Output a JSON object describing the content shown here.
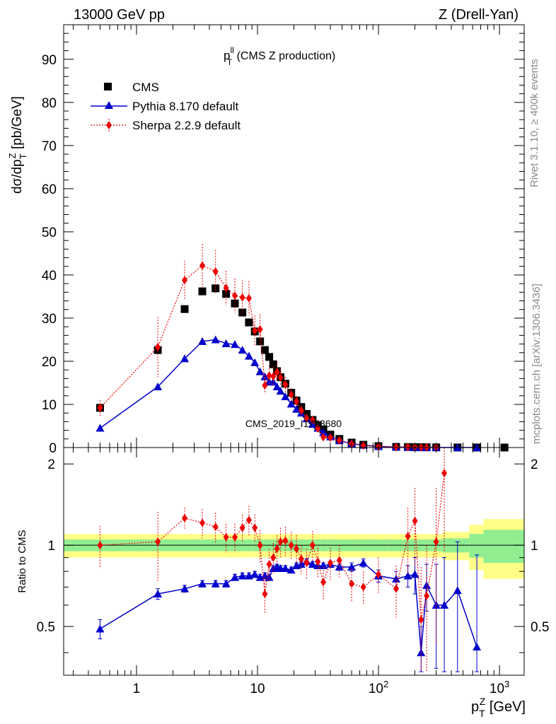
{
  "header": {
    "left": "13000 GeV pp",
    "right": "Z (Drell-Yan)"
  },
  "side_text": {
    "rivet": "Rivet 3.1.10, ≥ 400k events",
    "site": "mcplots.cern.ch [arXiv:1306.3436]"
  },
  "chart_data": [
    {
      "type": "scatter",
      "title": "p_T^ll (CMS Z production)",
      "title_main": "p",
      "title_sup": "ll",
      "title_sub": "T",
      "title_rest": " (CMS Z production)",
      "watermark": "CMS_2019_I1753680",
      "xlabel": "p_T^Z [GeV]",
      "ylabel": "dσ/dp_T^Z [pb/GeV]",
      "xscale": "log",
      "xlim": [
        0.25,
        1600
      ],
      "ylim": [
        0,
        98
      ],
      "yticks": [
        0,
        10,
        20,
        30,
        40,
        50,
        60,
        70,
        80,
        90
      ],
      "legend_position": "top-left",
      "series": [
        {
          "name": "CMS",
          "color": "#000000",
          "marker": "square",
          "x": [
            0.5,
            1.5,
            2.5,
            3.5,
            4.5,
            5.5,
            6.5,
            7.5,
            8.5,
            9.5,
            10.5,
            11.5,
            12.5,
            13.5,
            14.5,
            15.5,
            17,
            19,
            21,
            23,
            25.5,
            28.5,
            31.5,
            35,
            40,
            47.5,
            60,
            75,
            100,
            140,
            175,
            200,
            225,
            250,
            300,
            450,
            650,
            1100
          ],
          "y": [
            9.2,
            22.6,
            32.1,
            36.2,
            36.9,
            35.6,
            33.4,
            31.3,
            29.0,
            26.9,
            24.6,
            22.6,
            21.0,
            19.3,
            17.7,
            16.3,
            14.8,
            12.7,
            10.9,
            9.4,
            7.8,
            6.4,
            5.2,
            4.2,
            3.0,
            2.0,
            1.15,
            0.65,
            0.33,
            0.16,
            0.12,
            0.09,
            0.07,
            0.06,
            0.04,
            0.02,
            0.01,
            0.005
          ],
          "yerr": [
            0,
            0,
            0,
            0,
            0,
            0,
            0,
            0,
            0,
            0,
            0,
            0,
            0,
            0,
            0,
            0,
            0,
            0,
            0,
            0,
            0,
            0,
            0,
            0,
            0,
            0,
            0,
            0,
            0,
            0,
            0,
            0,
            0,
            0,
            0,
            0,
            0,
            0
          ]
        },
        {
          "name": "Pythia 8.170 default",
          "color": "#0000cc",
          "marker": "triangle",
          "line": "solid",
          "x": [
            0.5,
            1.5,
            2.5,
            3.5,
            4.5,
            5.5,
            6.5,
            7.5,
            8.5,
            9.5,
            10.5,
            11.5,
            12.5,
            13.5,
            14.5,
            15.5,
            17,
            19,
            21,
            23,
            25.5,
            28.5,
            31.5,
            35,
            40,
            47.5,
            60,
            75,
            100,
            140,
            175,
            200,
            225,
            250,
            300,
            450,
            650
          ],
          "y": [
            4.5,
            14.1,
            20.6,
            24.6,
            25.0,
            24.1,
            23.9,
            22.6,
            21.2,
            19.7,
            17.6,
            16.4,
            15.2,
            15.2,
            14.1,
            13.1,
            11.8,
            10.1,
            8.9,
            8.0,
            6.7,
            5.4,
            4.5,
            3.5,
            2.5,
            1.6,
            0.9,
            0.55,
            0.25,
            0.12,
            0.09,
            0.07,
            0.03,
            0.04,
            0.02,
            0.01,
            0.005
          ],
          "yerr": [
            0,
            0,
            0,
            0,
            0,
            0,
            0,
            0,
            0,
            0,
            0,
            0,
            0,
            0,
            0,
            0,
            0,
            0,
            0,
            0,
            0,
            0,
            0,
            0,
            0,
            0,
            0,
            0,
            0,
            0,
            0,
            0,
            0,
            0,
            0,
            0,
            0
          ]
        },
        {
          "name": "Sherpa 2.2.9 default",
          "color": "#ee0000",
          "marker": "diamond",
          "line": "dotted",
          "x": [
            0.5,
            1.5,
            2.5,
            3.5,
            4.5,
            5.5,
            6.5,
            7.5,
            8.5,
            9.5,
            10.5,
            11.5,
            12.5,
            13.5,
            14.5,
            15.5,
            17,
            19,
            21,
            23,
            25.5,
            28.5,
            31.5,
            35,
            40,
            47.5,
            60,
            75,
            100,
            140,
            175,
            200,
            225,
            250,
            300
          ],
          "y": [
            9.2,
            23.3,
            38.8,
            42.2,
            40.8,
            37.0,
            35.2,
            34.8,
            34.6,
            27.1,
            27.4,
            14.4,
            16.7,
            16.5,
            17.5,
            16.2,
            14.6,
            12.3,
            10.7,
            8.6,
            6.8,
            6.4,
            4.4,
            2.4,
            2.3,
            1.7,
            0.83,
            0.46,
            0.25,
            0.11,
            0.14,
            0.11,
            0.04,
            0.04,
            0.04
          ],
          "yerr": [
            1.8,
            7.0,
            4.5,
            5.0,
            5.0,
            4.0,
            4.0,
            4.0,
            4.0,
            3.5,
            3.5,
            2.0,
            2.3,
            2.3,
            2.3,
            2.0,
            1.8,
            1.5,
            1.3,
            1.1,
            0.9,
            0.8,
            0.6,
            0.5,
            0.4,
            0.3,
            0.15,
            0.1,
            0.06,
            0.03,
            0.03,
            0.03,
            0.02,
            0.02,
            0.02
          ]
        }
      ]
    },
    {
      "type": "scatter",
      "ylabel": "Ratio to CMS",
      "xlabel": "p_T^Z [GeV]",
      "xscale": "log",
      "xlim": [
        0.25,
        1600
      ],
      "ylim": [
        0.33,
        2.3
      ],
      "yticks": [
        0.5,
        1,
        2
      ],
      "ytick_labels": [
        "0.5",
        "1",
        "2"
      ],
      "xticks": [
        1,
        10,
        100,
        1000
      ],
      "xtick_labels": [
        "1",
        "10",
        "10^2",
        "10^3"
      ],
      "reference_line": 1,
      "band_edges": [
        0.25,
        1,
        2,
        3,
        4,
        5,
        6,
        7,
        8,
        9,
        10,
        11,
        12,
        13,
        14,
        15,
        16,
        18,
        20,
        22,
        24,
        27,
        30,
        33,
        37,
        43,
        52,
        68,
        82,
        118,
        162,
        188,
        212,
        238,
        262,
        338,
        562,
        738,
        1600
      ],
      "band_inner": [
        0.05,
        0.05,
        0.05,
        0.05,
        0.05,
        0.05,
        0.05,
        0.05,
        0.05,
        0.05,
        0.05,
        0.05,
        0.05,
        0.05,
        0.05,
        0.05,
        0.05,
        0.05,
        0.05,
        0.05,
        0.05,
        0.05,
        0.05,
        0.05,
        0.05,
        0.05,
        0.05,
        0.05,
        0.05,
        0.05,
        0.05,
        0.05,
        0.05,
        0.05,
        0.05,
        0.06,
        0.1,
        0.14
      ],
      "band_outer": [
        0.1,
        0.1,
        0.1,
        0.1,
        0.1,
        0.1,
        0.1,
        0.1,
        0.1,
        0.1,
        0.1,
        0.1,
        0.1,
        0.1,
        0.1,
        0.1,
        0.1,
        0.1,
        0.1,
        0.1,
        0.1,
        0.1,
        0.1,
        0.1,
        0.1,
        0.1,
        0.1,
        0.1,
        0.1,
        0.1,
        0.1,
        0.1,
        0.1,
        0.1,
        0.1,
        0.12,
        0.19,
        0.25
      ],
      "band_inner_color": "#90ee90",
      "band_outer_color": "#ffff88",
      "series": [
        {
          "name": "Pythia 8.170 default",
          "color": "#0000cc",
          "marker": "triangle",
          "line": "solid",
          "x": [
            0.5,
            1.5,
            2.5,
            3.5,
            4.5,
            5.5,
            6.5,
            7.5,
            8.5,
            9.5,
            10.5,
            11.5,
            12.5,
            13.5,
            14.5,
            15.5,
            17,
            19,
            21,
            23,
            25.5,
            28.5,
            31.5,
            35,
            40,
            47.5,
            60,
            75,
            100,
            140,
            175,
            200,
            225,
            250,
            300,
            350,
            450,
            650
          ],
          "y": [
            0.49,
            0.66,
            0.69,
            0.72,
            0.72,
            0.72,
            0.76,
            0.77,
            0.77,
            0.78,
            0.76,
            0.77,
            0.76,
            0.82,
            0.83,
            0.82,
            0.82,
            0.81,
            0.84,
            0.85,
            0.87,
            0.85,
            0.84,
            0.84,
            0.85,
            0.83,
            0.83,
            0.86,
            0.77,
            0.75,
            0.77,
            0.78,
            0.4,
            0.71,
            0.6,
            0.6,
            0.68,
            0.42
          ],
          "yerr": [
            0.04,
            0.03,
            0.02,
            0.02,
            0.02,
            0.02,
            0.02,
            0.02,
            0.02,
            0.02,
            0.02,
            0.02,
            0.02,
            0.02,
            0.02,
            0.02,
            0.02,
            0.02,
            0.02,
            0.02,
            0.02,
            0.02,
            0.02,
            0.02,
            0.02,
            0.02,
            0.03,
            0.03,
            0.04,
            0.05,
            0.07,
            0.12,
            0.1,
            0.14,
            0.25,
            0.3,
            0.35,
            0.5
          ]
        },
        {
          "name": "Sherpa 2.2.9 default",
          "color": "#ee0000",
          "marker": "diamond",
          "line": "dotted",
          "x": [
            0.5,
            1.5,
            2.5,
            3.5,
            4.5,
            5.5,
            6.5,
            7.5,
            8.5,
            9.5,
            10.5,
            11.5,
            12.5,
            13.5,
            14.5,
            15.5,
            17,
            19,
            21,
            23,
            25.5,
            28.5,
            31.5,
            35,
            40,
            47.5,
            60,
            75,
            100,
            140,
            175,
            200,
            225,
            250,
            300,
            350
          ],
          "y": [
            1.0,
            1.03,
            1.26,
            1.21,
            1.17,
            1.07,
            1.07,
            1.16,
            1.24,
            1.16,
            1.0,
            0.66,
            0.85,
            0.9,
            0.97,
            1.03,
            1.04,
            1.0,
            0.97,
            0.89,
            0.86,
            1.0,
            0.87,
            0.73,
            0.86,
            0.88,
            0.72,
            0.7,
            0.78,
            0.69,
            1.08,
            1.23,
            0.53,
            0.65,
            1.03,
            1.85
          ],
          "yerr": [
            0.18,
            0.3,
            0.12,
            0.15,
            0.15,
            0.13,
            0.13,
            0.14,
            0.16,
            0.14,
            0.14,
            0.1,
            0.12,
            0.12,
            0.12,
            0.13,
            0.13,
            0.12,
            0.12,
            0.11,
            0.11,
            0.13,
            0.11,
            0.1,
            0.12,
            0.12,
            0.1,
            0.1,
            0.12,
            0.15,
            0.3,
            0.4,
            0.3,
            0.35,
            0.6,
            0.9
          ]
        }
      ]
    }
  ]
}
